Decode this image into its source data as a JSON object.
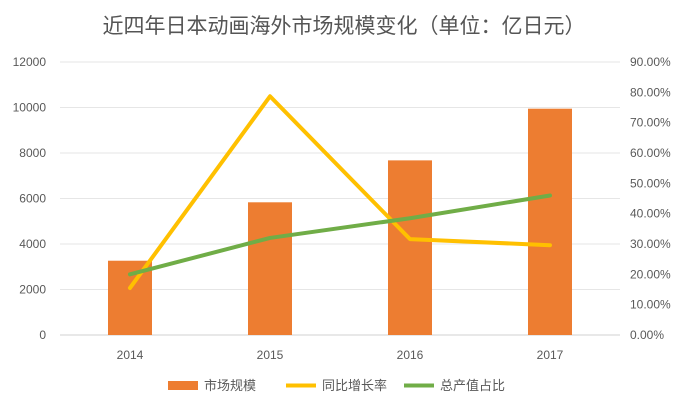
{
  "chart_data": {
    "type": "bar",
    "title": "近四年日本动画海外市场规模变化（单位：亿日元）",
    "categories": [
      "2014",
      "2015",
      "2016",
      "2017"
    ],
    "series": [
      {
        "name": "市场规模",
        "kind": "bar",
        "axis": "left",
        "values": [
          3265,
          5833,
          7676,
          9948
        ],
        "color": "#ED7D31"
      },
      {
        "name": "同比增长率",
        "kind": "line",
        "axis": "right",
        "values": [
          0.155,
          0.787,
          0.316,
          0.296
        ],
        "color": "#FFC000"
      },
      {
        "name": "总产值占比",
        "kind": "line",
        "axis": "right",
        "values": [
          0.2,
          0.32,
          0.385,
          0.46
        ],
        "color": "#70AD47"
      }
    ],
    "y_left": {
      "min": 0,
      "max": 12000,
      "ticks": [
        "0",
        "2000",
        "4000",
        "6000",
        "8000",
        "10000",
        "12000"
      ]
    },
    "y_right": {
      "min": 0,
      "max": 0.9,
      "ticks": [
        "0.00%",
        "10.00%",
        "20.00%",
        "30.00%",
        "40.00%",
        "50.00%",
        "60.00%",
        "70.00%",
        "80.00%",
        "90.00%"
      ]
    },
    "grid": true,
    "legend_position": "bottom"
  }
}
